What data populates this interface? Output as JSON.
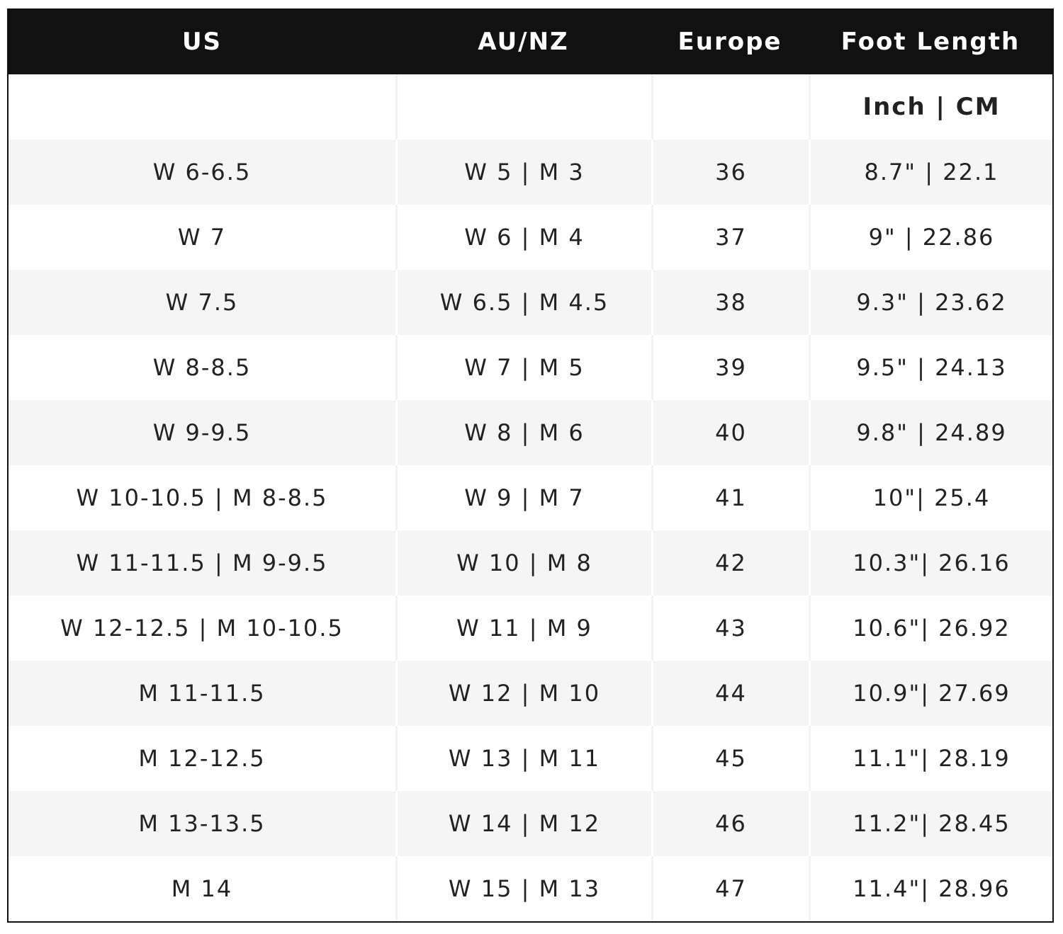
{
  "table": {
    "header": [
      "US",
      "AU/NZ",
      "Europe",
      "Foot Length"
    ],
    "subheader": "Inch | CM",
    "rows": [
      [
        "W 6-6.5",
        "W 5 | M 3",
        "36",
        "8.7\" | 22.1"
      ],
      [
        "W 7",
        "W 6 | M 4",
        "37",
        "9\" | 22.86"
      ],
      [
        "W 7.5",
        "W 6.5 | M 4.5",
        "38",
        "9.3\" | 23.62"
      ],
      [
        "W 8-8.5",
        "W 7 | M 5",
        "39",
        "9.5\" | 24.13"
      ],
      [
        "W 9-9.5",
        "W 8 | M 6",
        "40",
        "9.8\" | 24.89"
      ],
      [
        "W 10-10.5 | M 8-8.5",
        "W 9 | M 7",
        "41",
        "10\"| 25.4"
      ],
      [
        "W 11-11.5 | M 9-9.5",
        "W 10 | M 8",
        "42",
        "10.3\"| 26.16"
      ],
      [
        "W 12-12.5 | M 10-10.5",
        "W 11 | M 9",
        "43",
        "10.6\"| 26.92"
      ],
      [
        "M 11-11.5",
        "W 12 | M 10",
        "44",
        "10.9\"| 27.69"
      ],
      [
        "M 12-12.5",
        "W 13 | M 11",
        "45",
        "11.1\"| 28.19"
      ],
      [
        "M 13-13.5",
        "W 14 | M 12",
        "46",
        "11.2\"| 28.45"
      ],
      [
        "M 14",
        "W 15 | M 13",
        "47",
        "11.4\"| 28.96"
      ]
    ]
  }
}
